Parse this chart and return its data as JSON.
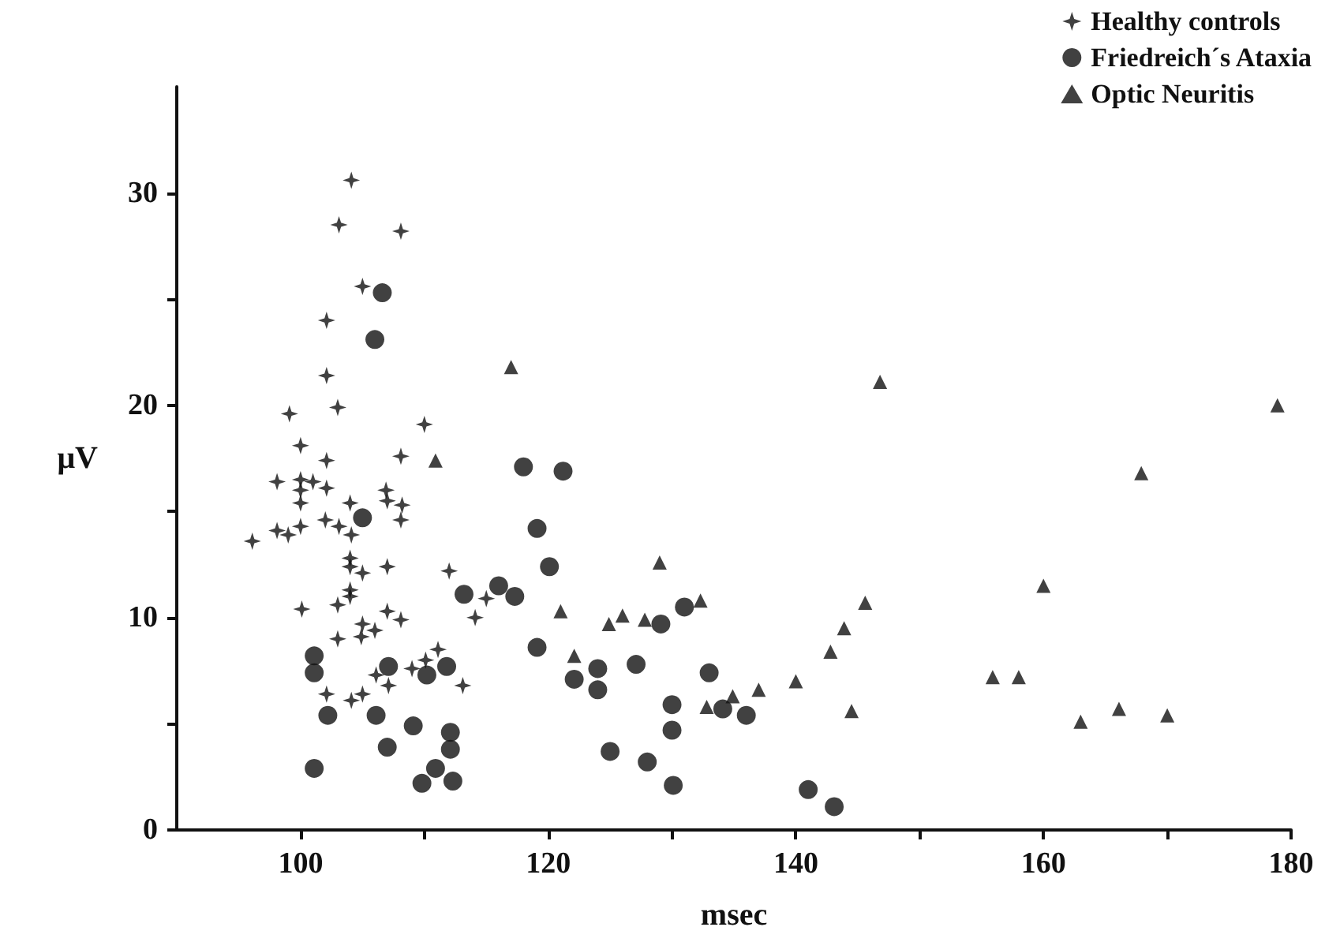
{
  "chart_data": {
    "type": "scatter",
    "xlabel": "msec",
    "ylabel": "μV",
    "xlim": [
      90,
      180
    ],
    "ylim": [
      0,
      35
    ],
    "xticks": [
      100,
      {
        "value": 110,
        "label": null
      },
      120,
      {
        "value": 130,
        "label": null
      },
      140,
      {
        "value": 150,
        "label": null
      },
      160,
      {
        "value": 170,
        "label": null
      },
      180
    ],
    "yticks": [
      0,
      {
        "value": 5,
        "label": null
      },
      10,
      {
        "value": 15,
        "label": null
      },
      20,
      {
        "value": 25,
        "label": null
      },
      30
    ],
    "grid": false,
    "legend": "top right",
    "series": [
      {
        "name": "Healthy controls",
        "color": "#111111",
        "marker": "cross",
        "x": [
          104.1,
          103.1,
          108.1,
          105.0,
          102.1,
          102.1,
          103.0,
          99.1,
          110.0,
          100.0,
          108.1,
          102.1,
          98.1,
          100.0,
          101.0,
          100.0,
          102.1,
          100.0,
          106.9,
          107.0,
          108.2,
          104.0,
          102.0,
          103.1,
          104.1,
          100.0,
          98.1,
          96.1,
          108.1,
          99.0,
          104.0,
          104.0,
          105.0,
          107.0,
          112.0,
          115.0,
          114.1,
          104.0,
          104.0,
          103.0,
          100.1,
          107.0,
          108.1,
          105.0,
          104.9,
          106.0,
          103.0,
          111.1,
          110.1,
          109.0,
          106.1,
          107.1,
          113.1,
          102.1,
          105.0,
          104.1
        ],
        "values": [
          30.6,
          28.5,
          28.2,
          25.6,
          24.0,
          21.4,
          19.9,
          19.6,
          19.1,
          18.1,
          17.6,
          17.4,
          16.4,
          16.5,
          16.4,
          16.0,
          16.1,
          15.4,
          16.0,
          15.5,
          15.3,
          15.4,
          14.6,
          14.3,
          13.9,
          14.3,
          14.1,
          13.6,
          14.6,
          13.9,
          12.8,
          12.4,
          12.1,
          12.4,
          12.2,
          10.9,
          10.0,
          11.3,
          11.0,
          10.6,
          10.4,
          10.3,
          9.9,
          9.7,
          9.1,
          9.4,
          9.0,
          8.5,
          8.0,
          7.6,
          7.3,
          6.8,
          6.8,
          6.4,
          6.4,
          6.1
        ]
      },
      {
        "name": "Friedreich´s Ataxia",
        "color": "#111111",
        "marker": "circle",
        "x": [
          106.6,
          106.0,
          105.0,
          118.0,
          101.1,
          101.1,
          107.1,
          110.2,
          111.8,
          113.2,
          116.0,
          117.3,
          102.2,
          106.1,
          109.1,
          112.1,
          112.1,
          107.0,
          101.1,
          110.9,
          109.8,
          112.3,
          121.2,
          119.1,
          120.1,
          119.1,
          122.1,
          124.0,
          124.0,
          127.1,
          129.1,
          131.0,
          133.0,
          130.0,
          130.0,
          134.1,
          136.0,
          125.0,
          128.0,
          130.1,
          141.0,
          143.1
        ],
        "values": [
          25.3,
          23.1,
          14.7,
          17.1,
          8.2,
          7.4,
          7.7,
          7.3,
          7.7,
          11.1,
          11.5,
          11.0,
          5.4,
          5.4,
          4.9,
          4.6,
          3.8,
          3.9,
          2.9,
          2.9,
          2.2,
          2.3,
          16.9,
          14.2,
          12.4,
          8.6,
          7.1,
          7.6,
          6.6,
          7.8,
          9.7,
          10.5,
          7.4,
          5.9,
          4.7,
          5.7,
          5.4,
          3.7,
          3.2,
          2.1,
          1.9,
          1.1
        ]
      },
      {
        "name": "Optic Neuritis",
        "color": "#111111",
        "marker": "triangle",
        "x": [
          117.0,
          110.9,
          129.0,
          121.0,
          122.1,
          124.9,
          126.0,
          127.8,
          132.3,
          132.8,
          134.9,
          137.0,
          140.0,
          142.8,
          143.9,
          145.6,
          144.5,
          146.8,
          178.9,
          167.9,
          160.0,
          155.9,
          158.0,
          163.0,
          166.1,
          170.0
        ],
        "values": [
          21.8,
          17.4,
          12.6,
          10.3,
          8.2,
          9.7,
          10.1,
          9.9,
          10.8,
          5.8,
          6.3,
          6.6,
          7.0,
          8.4,
          9.5,
          10.7,
          5.6,
          21.1,
          20.0,
          16.8,
          11.5,
          7.2,
          7.2,
          5.1,
          5.7,
          5.4
        ]
      }
    ]
  }
}
